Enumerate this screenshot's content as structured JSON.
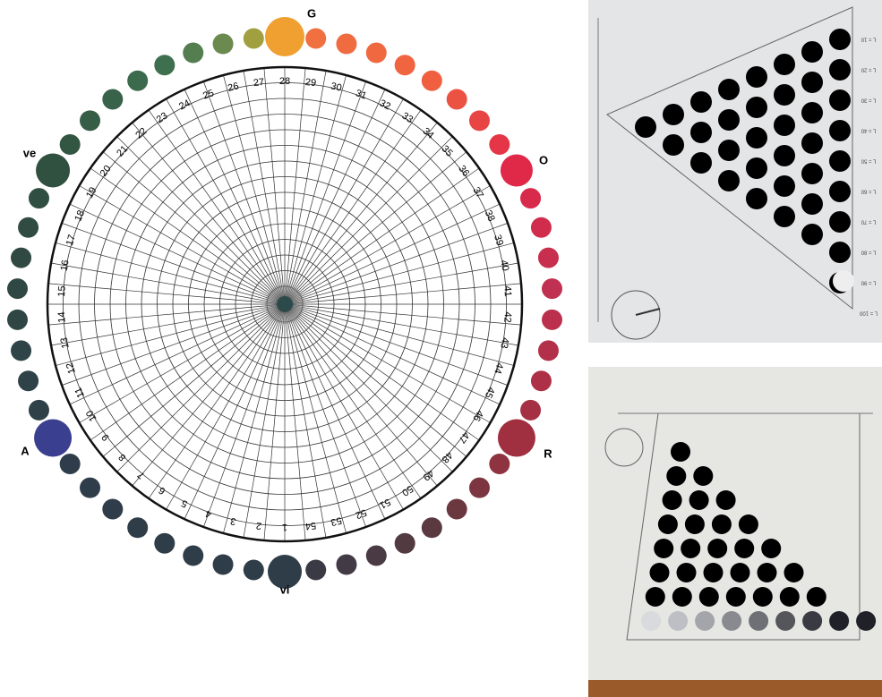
{
  "wheel": {
    "hue_labels": [
      "G",
      "O",
      "R",
      "vi",
      "A",
      "ve"
    ],
    "numbers": [
      1,
      2,
      3,
      4,
      5,
      6,
      7,
      8,
      9,
      10,
      11,
      12,
      13,
      14,
      15,
      16,
      17,
      18,
      19,
      20,
      21,
      22,
      23,
      24,
      25,
      26,
      27,
      28,
      29,
      30,
      31,
      32,
      33,
      34,
      35,
      36,
      37,
      38,
      39,
      40,
      41,
      42,
      43,
      44,
      45,
      46,
      47,
      48,
      49,
      50,
      51,
      52,
      53,
      54
    ]
  },
  "photo_top": {
    "lightness_labels": [
      "L = 10",
      "L = 20",
      "L = 30",
      "L = 40",
      "L = 50",
      "L = 60",
      "L = 70",
      "L = 80",
      "L = 90",
      "L = 100"
    ]
  }
}
